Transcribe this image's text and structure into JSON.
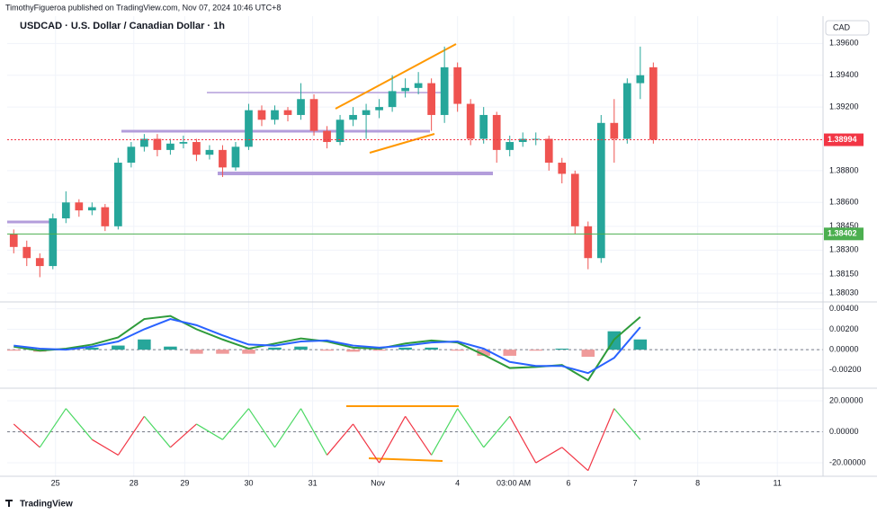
{
  "header": {
    "publisher": "TimothyFigueroa published on TradingView.com, Nov 07, 2024 10:46 UTC+8"
  },
  "chart_data": [
    {
      "type": "candlestick",
      "title": "USDCAD · U.S. Dollar / Canadian Dollar · 1h",
      "currency": "CAD",
      "up_color": "#26a69a",
      "down_color": "#ef5350",
      "open": [
        1.384,
        1.3832,
        1.3825,
        1.382,
        1.385,
        1.386,
        1.3855,
        1.3857,
        1.3845,
        1.3885,
        1.3895,
        1.39,
        1.3893,
        1.3897,
        1.3898,
        1.389,
        1.3893,
        1.3882,
        1.3895,
        1.3918,
        1.3912,
        1.3918,
        1.3915,
        1.3925,
        1.3905,
        1.3898,
        1.3912,
        1.3915,
        1.3918,
        1.392,
        1.393,
        1.3932,
        1.3935,
        1.3915,
        1.3945,
        1.3922,
        1.39,
        1.3915,
        1.3893,
        1.3898,
        1.39,
        1.39,
        1.3885,
        1.3878,
        1.3845,
        1.3825,
        1.391,
        1.39,
        1.3935,
        1.3945
      ],
      "high": [
        1.3843,
        1.3836,
        1.3828,
        1.3853,
        1.3867,
        1.3862,
        1.386,
        1.3859,
        1.3888,
        1.3898,
        1.3903,
        1.3903,
        1.39,
        1.3902,
        1.39,
        1.3896,
        1.3896,
        1.3898,
        1.3922,
        1.3921,
        1.3921,
        1.392,
        1.3935,
        1.3928,
        1.3908,
        1.3915,
        1.392,
        1.3922,
        1.3925,
        1.394,
        1.3938,
        1.3942,
        1.3938,
        1.3958,
        1.3948,
        1.3925,
        1.392,
        1.3917,
        1.3902,
        1.3904,
        1.3904,
        1.3902,
        1.3888,
        1.388,
        1.3848,
        1.3915,
        1.3925,
        1.3938,
        1.3958,
        1.3948
      ],
      "low": [
        1.3828,
        1.382,
        1.3813,
        1.3818,
        1.3847,
        1.3851,
        1.3852,
        1.3842,
        1.3843,
        1.3882,
        1.3892,
        1.3889,
        1.389,
        1.3894,
        1.3886,
        1.3887,
        1.3876,
        1.388,
        1.3893,
        1.3908,
        1.3909,
        1.3911,
        1.3912,
        1.3902,
        1.3894,
        1.3896,
        1.3908,
        1.39,
        1.3913,
        1.3917,
        1.3926,
        1.3928,
        1.3905,
        1.391,
        1.3917,
        1.3896,
        1.3897,
        1.3885,
        1.3889,
        1.3895,
        1.3896,
        1.388,
        1.3872,
        1.384,
        1.3818,
        1.3822,
        1.3885,
        1.3897,
        1.3925,
        1.3897
      ],
      "close": [
        1.3832,
        1.3825,
        1.382,
        1.385,
        1.386,
        1.3855,
        1.3857,
        1.3845,
        1.3885,
        1.3895,
        1.39,
        1.3893,
        1.3897,
        1.3898,
        1.389,
        1.3893,
        1.3882,
        1.3895,
        1.3918,
        1.3912,
        1.3918,
        1.3915,
        1.3925,
        1.3905,
        1.3898,
        1.3912,
        1.3915,
        1.3918,
        1.392,
        1.393,
        1.3932,
        1.3935,
        1.3915,
        1.3945,
        1.3922,
        1.39,
        1.3915,
        1.3893,
        1.3898,
        1.39,
        1.39,
        1.3885,
        1.3878,
        1.3845,
        1.3825,
        1.391,
        1.39,
        1.3935,
        1.394,
        1.38994
      ],
      "xlim": [
        0,
        62.5
      ],
      "xticks": [
        {
          "value": 3.7,
          "label": "25"
        },
        {
          "value": 9.7,
          "label": "28"
        },
        {
          "value": 13.6,
          "label": "29"
        },
        {
          "value": 18.5,
          "label": "30"
        },
        {
          "value": 23.4,
          "label": "31"
        },
        {
          "value": 28.4,
          "label": "Nov"
        },
        {
          "value": 34.5,
          "label": "4"
        },
        {
          "value": 38.8,
          "label": "03:00 AM"
        },
        {
          "value": 43.0,
          "label": "6"
        },
        {
          "value": 48.1,
          "label": "7"
        },
        {
          "value": 52.9,
          "label": "8"
        },
        {
          "value": 59.0,
          "label": "11"
        }
      ],
      "ylim": [
        1.3798,
        1.3976
      ],
      "yticks": [
        {
          "value": 1.396,
          "label": "1.39600"
        },
        {
          "value": 1.394,
          "label": "1.39400"
        },
        {
          "value": 1.392,
          "label": "1.39200"
        },
        {
          "value": 1.388,
          "label": "1.38800"
        },
        {
          "value": 1.386,
          "label": "1.38600"
        },
        {
          "value": 1.3845,
          "label": "1.38450"
        },
        {
          "value": 1.383,
          "label": "1.38300"
        },
        {
          "value": 1.3815,
          "label": "1.38150"
        },
        {
          "value": 1.3803,
          "label": "1.38030"
        }
      ],
      "last_price": 1.38994,
      "last_price_color": "#f23645",
      "hline": 1.38402,
      "hline_color": "#4caf50"
    },
    {
      "type": "macd",
      "x": [
        0.5,
        2.5,
        4.5,
        6.5,
        8.5,
        10.5,
        12.5,
        14.5,
        16.5,
        18.5,
        20.5,
        22.5,
        24.5,
        26.5,
        28.5,
        30.5,
        32.5,
        34.5,
        36.5,
        38.5,
        40.5,
        42.5,
        44.5,
        46.5,
        48.5
      ],
      "series": [
        {
          "color": "#2e9b3a",
          "values": [
            0.0003,
            -0.0001,
            0.0001,
            0.0005,
            0.0012,
            0.003,
            0.0033,
            0.002,
            0.001,
            0.0001,
            0.0006,
            0.0011,
            0.0008,
            0.0002,
            0.0001,
            0.0006,
            0.0009,
            0.0007,
            -0.0005,
            -0.0018,
            -0.0017,
            -0.0015,
            -0.003,
            0.001,
            0.0032
          ]
        },
        {
          "color": "#2962ff",
          "values": [
            0.0004,
            0.0001,
            0.0,
            0.0003,
            0.0008,
            0.002,
            0.003,
            0.0024,
            0.0014,
            0.0005,
            0.0004,
            0.0008,
            0.0009,
            0.0004,
            0.0002,
            0.0004,
            0.0007,
            0.0008,
            0.0001,
            -0.0012,
            -0.0016,
            -0.0016,
            -0.0023,
            -0.0008,
            0.0022
          ]
        }
      ],
      "histogram": [
        -0.0001,
        -0.0002,
        0.0001,
        0.0002,
        0.0004,
        0.001,
        0.0003,
        -0.0004,
        -0.0004,
        -0.0004,
        0.0002,
        0.0003,
        -0.0001,
        -0.0002,
        -0.0001,
        0.0002,
        0.0002,
        -0.0001,
        -0.0006,
        -0.0006,
        -0.0001,
        0.0001,
        -0.0007,
        0.0018,
        0.001
      ],
      "hist_up_color": "#26a69a",
      "hist_down_color": "#ef9a9a",
      "ylim": [
        -0.0036,
        0.0045
      ],
      "yticks": [
        {
          "value": 0.004,
          "label": "0.00400"
        },
        {
          "value": 0.002,
          "label": "0.00200"
        },
        {
          "value": 0,
          "label": "0.00000"
        },
        {
          "value": -0.002,
          "label": "-0.00200"
        }
      ]
    },
    {
      "type": "oscillator",
      "x": [
        0.5,
        2.5,
        4.5,
        6.5,
        8.5,
        10.5,
        12.5,
        14.5,
        16.5,
        18.5,
        20.5,
        22.5,
        24.5,
        26.5,
        28.5,
        30.5,
        32.5,
        34.5,
        36.5,
        38.5,
        40.5,
        42.5,
        44.5,
        46.5,
        48.5
      ],
      "values": [
        5,
        -10,
        15,
        -5,
        -15,
        10,
        -10,
        5,
        -5,
        15,
        -10,
        15,
        -15,
        5,
        -20,
        10,
        -15,
        15,
        -10,
        10,
        -20,
        -10,
        -25,
        15,
        -5
      ],
      "up_color": "#4cd964",
      "down_color": "#f23645",
      "ylim": [
        -27.5,
        26.4
      ],
      "yticks": [
        {
          "value": 20,
          "label": "20.00000"
        },
        {
          "value": 0,
          "label": "0.00000"
        },
        {
          "value": -20,
          "label": "-20.00000"
        }
      ]
    }
  ],
  "footer": {
    "brand": "TradingView"
  }
}
